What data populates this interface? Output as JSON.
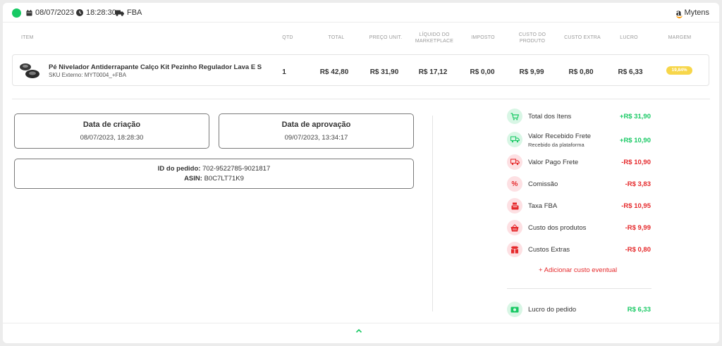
{
  "header": {
    "date": "08/07/2023",
    "time": "18:28:30",
    "fulfillment": "FBA",
    "marketplace_logo": "a",
    "marketplace_store": "Mytens"
  },
  "table": {
    "headers": {
      "item": "ITEM",
      "qtd": "QTD",
      "total": "TOTAL",
      "preco_unit": "PREÇO UNIT.",
      "liquido_l1": "LÍQUIDO DO",
      "liquido_l2": "MARKETPLACE",
      "imposto": "IMPOSTO",
      "custo_produto_l1": "CUSTO DO",
      "custo_produto_l2": "PRODUTO",
      "custo_extra": "CUSTO EXTRA",
      "lucro": "LUCRO",
      "margem": "MARGEM"
    },
    "row": {
      "name": "Pé Nivelador Antiderrapante Calço Kit Pezinho Regulador Lava E S",
      "sku": "SKU Externo: MYT0004_+FBA",
      "qtd": "1",
      "total": "R$ 42,80",
      "preco_unit": "R$ 31,90",
      "liquido": "R$ 17,12",
      "imposto": "R$ 0,00",
      "custo_produto": "R$ 9,99",
      "custo_extra": "R$ 0,80",
      "lucro": "R$ 6,33",
      "margem": "19,84%"
    }
  },
  "dates": {
    "criacao_label": "Data de criação",
    "criacao_value": "08/07/2023, 18:28:30",
    "aprovacao_label": "Data de aprovação",
    "aprovacao_value": "09/07/2023, 13:34:17"
  },
  "ids": {
    "pedido_label": "ID do pedido:",
    "pedido_value": "702-9522785-9021817",
    "asin_label": "ASIN:",
    "asin_value": "B0C7LT71K9"
  },
  "summary": {
    "total_itens": {
      "label": "Total dos Itens",
      "value": "+R$ 31,90",
      "icon": "cart-icon"
    },
    "frete_recebido": {
      "label": "Valor Recebido Frete",
      "sub": "Recebido da plataforma",
      "value": "+R$ 10,90",
      "icon": "truck-icon"
    },
    "frete_pago": {
      "label": "Valor Pago Frete",
      "value": "-R$ 10,90",
      "icon": "truck-icon"
    },
    "comissao": {
      "label": "Comissão",
      "value": "-R$ 3,83",
      "icon": "percent-icon"
    },
    "taxa_fba": {
      "label": "Taxa FBA",
      "value": "-R$ 10,95",
      "icon": "register-icon"
    },
    "custo_produtos": {
      "label": "Custo dos produtos",
      "value": "-R$ 9,99",
      "icon": "basket-icon"
    },
    "custos_extras": {
      "label": "Custos Extras",
      "value": "-R$ 0,80",
      "icon": "box-icon"
    },
    "add_custo": "+ Adicionar custo eventual",
    "lucro": {
      "label": "Lucro do pedido",
      "value": "R$ 6,33",
      "icon": "money-icon"
    }
  },
  "colors": {
    "positive": "#18c964",
    "negative": "#e5292b",
    "badge": "#f7d64a",
    "status": "#18c964"
  }
}
